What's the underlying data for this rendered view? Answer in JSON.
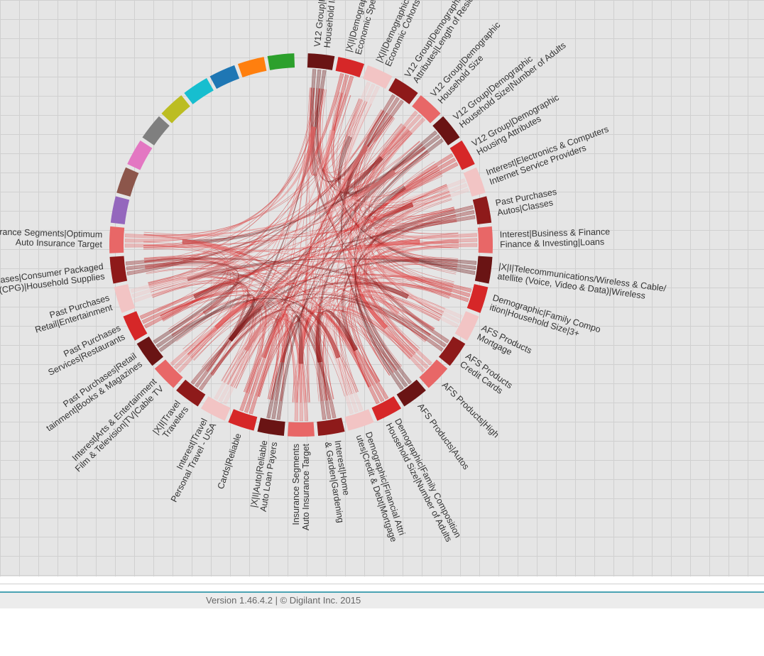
{
  "footer": {
    "version_text": "Version 1.46.4.2 | © Digilant Inc. 2015"
  },
  "colors": {
    "background": "#e5e5e5",
    "grid_line": "#d0d0d0",
    "link_color": "#d44a4a",
    "footer_accent": "#4aa3b3",
    "reds": [
      "#f2c4c4",
      "#d62728",
      "#8e1a1a",
      "#e86767",
      "#6a1414"
    ]
  },
  "chart_data": {
    "type": "chord",
    "title": "",
    "groups": [
      {
        "label": [
          "V12 Group|Financial",
          "Household Income"
        ],
        "color": "#6a1414"
      },
      {
        "label": [
          "|X|I|Demographics",
          "Economic Spectrum"
        ],
        "color": "#d62728"
      },
      {
        "label": [
          "|X|I|Demographics",
          "Economic Cohorts"
        ],
        "color": "#f2c4c4"
      },
      {
        "label": [
          "V12 Group|Demographic|Housing",
          "Attributes|Length of Residence"
        ],
        "color": "#8e1a1a"
      },
      {
        "label": [
          "V12 Group|Demographic",
          "Household Size"
        ],
        "color": "#e86767"
      },
      {
        "label": [
          "V12 Group|Demographic",
          "Household Size|Number of Adults"
        ],
        "color": "#6a1414"
      },
      {
        "label": [
          "V12 Group|Demographic",
          "Housing Attributes"
        ],
        "color": "#d62728"
      },
      {
        "label": [
          "Interest|Electronics & Computers",
          "Internet Service Providers"
        ],
        "color": "#f2c4c4"
      },
      {
        "label": [
          "Past Purchases",
          "Autos|Classes"
        ],
        "color": "#8e1a1a"
      },
      {
        "label": [
          "Interest|Business & Finance",
          "Finance & Investing|Loans"
        ],
        "color": "#e86767"
      },
      {
        "label": [
          "|X|I|Telecommunications/Wireless & Cable/",
          "atellite (Voice, Video & Data)|Wireless"
        ],
        "color": "#6a1414"
      },
      {
        "label": [
          "Demographic|Family Compo",
          "ition|Household Size|3+"
        ],
        "color": "#d62728"
      },
      {
        "label": [
          "AFS Products",
          "Mortgage"
        ],
        "color": "#f2c4c4"
      },
      {
        "label": [
          "AFS Products",
          "Credit Cards"
        ],
        "color": "#8e1a1a"
      },
      {
        "label": [
          "AFS Products|High"
        ],
        "color": "#e86767"
      },
      {
        "label": [
          "AFS Products|Autos"
        ],
        "color": "#6a1414"
      },
      {
        "label": [
          "Demographic|Family Composition",
          "Household Size|Number of Adults"
        ],
        "color": "#d62728"
      },
      {
        "label": [
          "Demographic|Financial Attri",
          "utes|Credit & Debt|Mortgage"
        ],
        "color": "#f2c4c4"
      },
      {
        "label": [
          "Interest|Home",
          "& Garden|Gardening"
        ],
        "color": "#8e1a1a"
      },
      {
        "label": [
          "Insurance Segments",
          "Auto Insurance Target"
        ],
        "color": "#e86767"
      },
      {
        "label": [
          "|X|I|Auto|Reliable",
          "Auto Loan Payers"
        ],
        "color": "#6a1414"
      },
      {
        "label": [
          "Cards|Reliable"
        ],
        "color": "#d62728"
      },
      {
        "label": [
          "Interest|Travel",
          "Personal Travel - USA"
        ],
        "color": "#f2c4c4"
      },
      {
        "label": [
          "|X|I|Travel",
          "Travelers"
        ],
        "color": "#8e1a1a"
      },
      {
        "label": [
          "Interest|Arts & Entertainment",
          "Film & Television|TV|Cable TV"
        ],
        "color": "#e86767"
      },
      {
        "label": [
          "Past Purchases|Retail",
          "tainment|Books & Magazines"
        ],
        "color": "#6a1414"
      },
      {
        "label": [
          "Past Purchases",
          "Services|Restaurants"
        ],
        "color": "#d62728"
      },
      {
        "label": [
          "Past Purchases",
          "Retail|Entertainment"
        ],
        "color": "#f2c4c4"
      },
      {
        "label": [
          "chases|Consumer Packaged",
          "s (CPG)|Household Supplies"
        ],
        "color": "#8e1a1a"
      },
      {
        "label": [
          "Insurance Segments|Optimum",
          "Auto Insurance Target"
        ],
        "color": "#e86767"
      },
      {
        "label": [],
        "color": "#9467bd"
      },
      {
        "label": [],
        "color": "#8c564b"
      },
      {
        "label": [],
        "color": "#e377c2"
      },
      {
        "label": [],
        "color": "#7f7f7f"
      },
      {
        "label": [],
        "color": "#bcbd22"
      },
      {
        "label": [],
        "color": "#17becf"
      },
      {
        "label": [],
        "color": "#1f77b4"
      },
      {
        "label": [],
        "color": "#ff7f0e"
      },
      {
        "label": [],
        "color": "#2ca02c"
      }
    ]
  }
}
